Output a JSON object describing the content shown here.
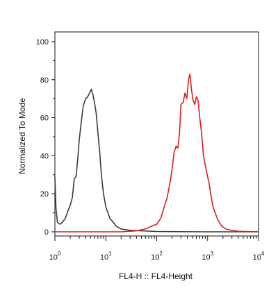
{
  "chart_data": {
    "type": "line",
    "xlabel": "FL4-H :: FL4-Height",
    "ylabel": "Normalized To Mode",
    "x_scale": "log",
    "xlim": [
      1,
      10000
    ],
    "ylim": [
      0,
      100
    ],
    "x_tick_labels": [
      {
        "base": "10",
        "exp": "0",
        "value": 1
      },
      {
        "base": "10",
        "exp": "1",
        "value": 10
      },
      {
        "base": "10",
        "exp": "2",
        "value": 100
      },
      {
        "base": "10",
        "exp": "3",
        "value": 1000
      },
      {
        "base": "10",
        "exp": "4",
        "value": 10000
      }
    ],
    "y_ticks": [
      "0",
      "20",
      "40",
      "60",
      "80",
      "100"
    ],
    "grid": false,
    "legend": "none",
    "series": [
      {
        "color": "#3a3a3a",
        "points": [
          [
            1.0,
            29
          ],
          [
            1.05,
            12
          ],
          [
            1.12,
            5
          ],
          [
            1.25,
            4
          ],
          [
            1.4,
            5
          ],
          [
            1.6,
            7
          ],
          [
            1.8,
            11
          ],
          [
            2.0,
            14
          ],
          [
            2.2,
            18
          ],
          [
            2.4,
            28
          ],
          [
            2.6,
            29
          ],
          [
            2.8,
            38
          ],
          [
            3.0,
            48
          ],
          [
            3.3,
            58
          ],
          [
            3.6,
            66
          ],
          [
            4.0,
            70
          ],
          [
            4.4,
            71
          ],
          [
            4.8,
            73
          ],
          [
            5.2,
            75
          ],
          [
            5.6,
            72
          ],
          [
            6.0,
            68
          ],
          [
            6.5,
            62
          ],
          [
            7.0,
            52
          ],
          [
            7.6,
            42
          ],
          [
            8.2,
            30
          ],
          [
            9.0,
            20
          ],
          [
            10.0,
            13
          ],
          [
            11.0,
            10
          ],
          [
            12.0,
            7
          ],
          [
            14.0,
            5
          ],
          [
            16.0,
            3
          ],
          [
            20.0,
            1.5
          ],
          [
            30.0,
            0.8
          ],
          [
            50.0,
            0.5
          ],
          [
            100.0,
            0.2
          ],
          [
            200.0,
            0.1
          ],
          [
            1000.0,
            0
          ],
          [
            10000.0,
            0
          ]
        ]
      },
      {
        "color": "#e01b1b",
        "points": [
          [
            1.0,
            0
          ],
          [
            20.0,
            0
          ],
          [
            40.0,
            0.5
          ],
          [
            60.0,
            1.5
          ],
          [
            80.0,
            3
          ],
          [
            100.0,
            4
          ],
          [
            120.0,
            7
          ],
          [
            140.0,
            13
          ],
          [
            160.0,
            18
          ],
          [
            180.0,
            25
          ],
          [
            200.0,
            33
          ],
          [
            220.0,
            42
          ],
          [
            240.0,
            45
          ],
          [
            260.0,
            44
          ],
          [
            280.0,
            52
          ],
          [
            300.0,
            67
          ],
          [
            330.0,
            68
          ],
          [
            360.0,
            73
          ],
          [
            390.0,
            70
          ],
          [
            420.0,
            80
          ],
          [
            450.0,
            83
          ],
          [
            480.0,
            75
          ],
          [
            520.0,
            69
          ],
          [
            560.0,
            67
          ],
          [
            600.0,
            71
          ],
          [
            650.0,
            69
          ],
          [
            700.0,
            60
          ],
          [
            760.0,
            52
          ],
          [
            830.0,
            40
          ],
          [
            900.0,
            35
          ],
          [
            980.0,
            30
          ],
          [
            1060.0,
            26
          ],
          [
            1150.0,
            20
          ],
          [
            1260.0,
            14
          ],
          [
            1400.0,
            10
          ],
          [
            1600.0,
            6
          ],
          [
            1900.0,
            3
          ],
          [
            2300.0,
            1.5
          ],
          [
            3000.0,
            0.7
          ],
          [
            4000.0,
            0.3
          ],
          [
            6000.0,
            0.1
          ],
          [
            10000.0,
            0
          ]
        ]
      }
    ]
  }
}
